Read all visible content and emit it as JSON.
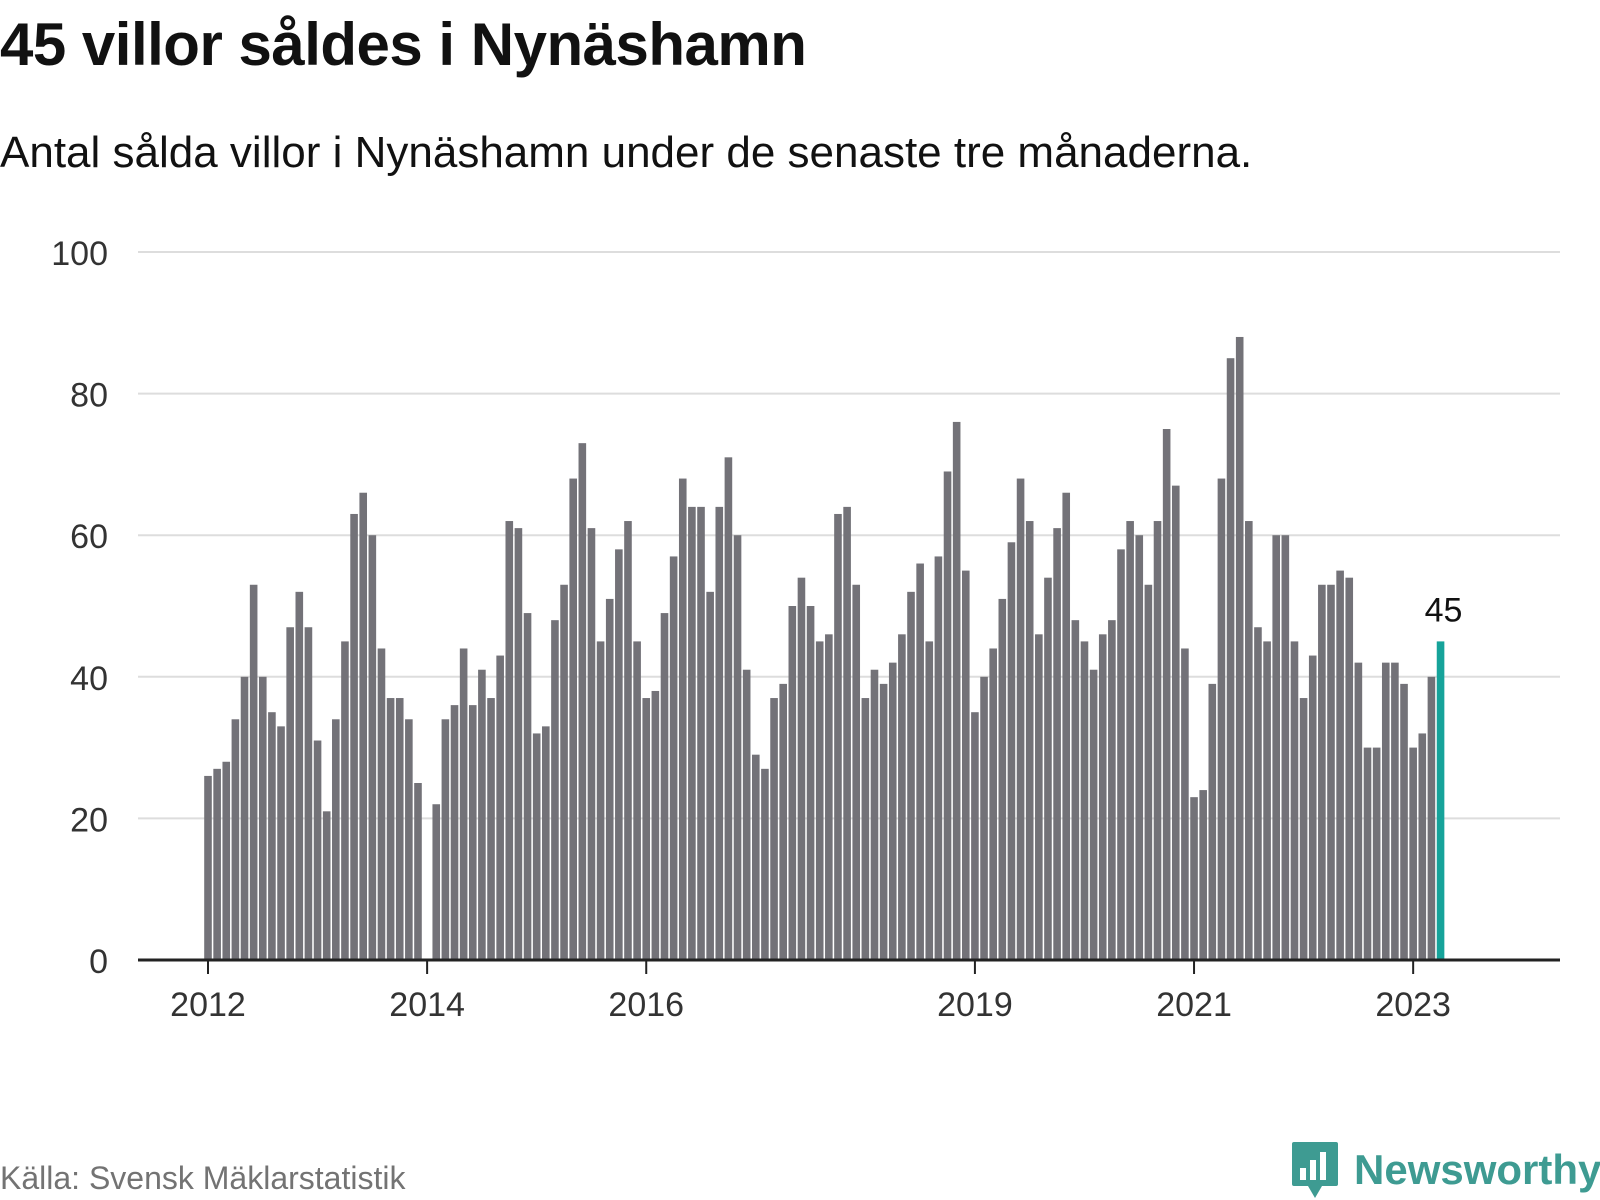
{
  "header": {
    "title": "45 villor såldes i Nynäshamn",
    "subtitle": "Antal sålda villor i Nynäshamn under de senaste tre månaderna."
  },
  "footer": {
    "source": "Källa: Svensk Mäklarstatistik",
    "brand": "Newsworthy"
  },
  "colors": {
    "bar": "#737278",
    "highlight": "#16a39a",
    "grid": "#dddddd",
    "axis": "#222222",
    "tick_text": "#333333",
    "brand": "#3e9b92"
  },
  "chart_data": {
    "type": "bar",
    "title": "45 villor såldes i Nynäshamn",
    "subtitle": "Antal sålda villor i Nynäshamn under de senaste tre månaderna.",
    "xlabel": "",
    "ylabel": "",
    "ylim": [
      0,
      100
    ],
    "yticks": [
      0,
      20,
      40,
      60,
      80,
      100
    ],
    "grid": true,
    "x_tick_labels": [
      {
        "label": "2012",
        "index": 0
      },
      {
        "label": "2014",
        "index": 24
      },
      {
        "label": "2016",
        "index": 48
      },
      {
        "label": "2019",
        "index": 84
      },
      {
        "label": "2021",
        "index": 108
      },
      {
        "label": "2023",
        "index": 132
      }
    ],
    "highlight_index": 135,
    "highlight_label": "45",
    "values": [
      26,
      27,
      28,
      34,
      40,
      53,
      40,
      35,
      33,
      47,
      52,
      47,
      31,
      21,
      34,
      45,
      63,
      66,
      60,
      44,
      37,
      37,
      34,
      25,
      0,
      22,
      34,
      36,
      44,
      36,
      41,
      37,
      43,
      62,
      61,
      49,
      32,
      33,
      48,
      53,
      68,
      73,
      61,
      45,
      51,
      58,
      62,
      45,
      37,
      38,
      49,
      57,
      68,
      64,
      64,
      52,
      64,
      71,
      60,
      41,
      29,
      27,
      37,
      39,
      50,
      54,
      50,
      45,
      46,
      63,
      64,
      53,
      37,
      41,
      39,
      42,
      46,
      52,
      56,
      45,
      57,
      69,
      76,
      55,
      35,
      40,
      44,
      51,
      59,
      68,
      62,
      46,
      54,
      61,
      66,
      48,
      45,
      41,
      46,
      48,
      58,
      62,
      60,
      53,
      62,
      75,
      67,
      44,
      23,
      24,
      39,
      68,
      85,
      88,
      62,
      47,
      45,
      60,
      60,
      45,
      37,
      43,
      53,
      53,
      55,
      54,
      42,
      30,
      30,
      42,
      42,
      39,
      30,
      32,
      40,
      45
    ]
  }
}
